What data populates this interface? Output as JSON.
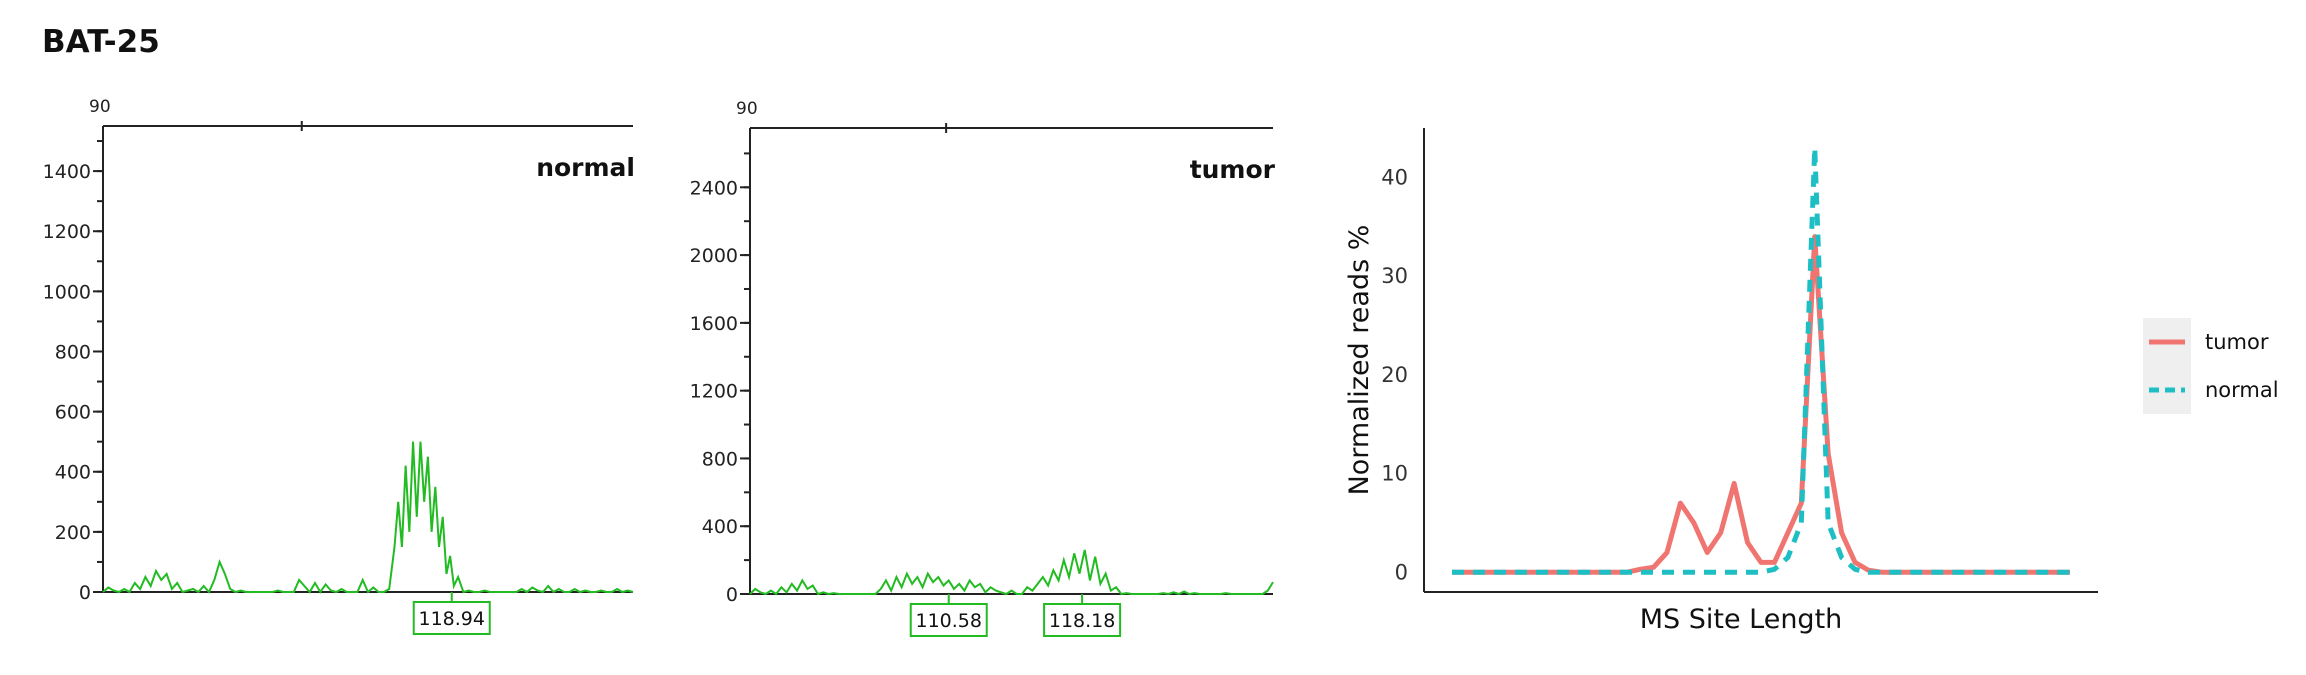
{
  "figure_title": "BAT-25",
  "chart_data": [
    {
      "type": "line",
      "panel_label": "normal",
      "top_axis_start": "90",
      "ylim": [
        0,
        1550
      ],
      "y_ticks": [
        0,
        200,
        400,
        600,
        800,
        1000,
        1200,
        1400
      ],
      "xlim": [
        0,
        100
      ],
      "color": "#22bb22",
      "x": [
        0,
        1,
        2,
        3,
        4,
        5,
        6,
        7,
        8,
        9,
        10,
        11,
        12,
        13,
        14,
        15,
        16,
        17,
        18,
        19,
        20,
        21,
        22,
        23,
        24,
        25,
        26,
        27,
        28,
        29,
        30,
        31,
        32,
        33,
        34,
        35,
        36,
        37,
        38,
        39,
        40,
        41,
        42,
        43,
        44,
        45,
        46,
        47,
        48,
        49,
        50,
        51,
        52,
        53,
        54,
        55,
        55.7,
        56.4,
        57.1,
        57.8,
        58.5,
        59.2,
        59.9,
        60.6,
        61.3,
        62,
        62.7,
        63.4,
        64.1,
        64.8,
        65.5,
        66.2,
        67,
        68,
        69,
        70,
        71,
        72,
        73,
        74,
        75,
        76,
        77,
        78,
        79,
        80,
        81,
        82,
        83,
        84,
        85,
        86,
        87,
        88,
        89,
        90,
        91,
        92,
        93,
        94,
        95,
        96,
        97,
        98,
        99,
        100
      ],
      "y": [
        0,
        15,
        5,
        0,
        10,
        0,
        30,
        10,
        50,
        20,
        70,
        40,
        60,
        10,
        30,
        0,
        5,
        10,
        0,
        20,
        0,
        40,
        100,
        60,
        10,
        0,
        5,
        0,
        0,
        0,
        0,
        0,
        0,
        5,
        0,
        0,
        0,
        40,
        20,
        0,
        30,
        0,
        25,
        5,
        0,
        10,
        0,
        0,
        0,
        40,
        0,
        15,
        0,
        0,
        10,
        150,
        300,
        150,
        420,
        200,
        500,
        250,
        500,
        300,
        450,
        200,
        350,
        150,
        250,
        60,
        120,
        20,
        50,
        0,
        5,
        0,
        0,
        5,
        0,
        0,
        0,
        0,
        0,
        0,
        10,
        0,
        15,
        5,
        0,
        20,
        0,
        10,
        0,
        0,
        10,
        0,
        5,
        0,
        0,
        5,
        0,
        0,
        10,
        0,
        5,
        0
      ],
      "labeled_peaks": [
        {
          "x": 65.8,
          "label": "118.94"
        }
      ]
    },
    {
      "type": "line",
      "panel_label": "tumor",
      "top_axis_start": "90",
      "ylim": [
        0,
        2750
      ],
      "y_ticks": [
        0,
        400,
        800,
        1200,
        1600,
        2000,
        2400
      ],
      "xlim": [
        0,
        100
      ],
      "color": "#22bb22",
      "x": [
        0,
        1,
        2,
        3,
        4,
        5,
        6,
        7,
        8,
        9,
        10,
        11,
        12,
        13,
        14,
        15,
        16,
        17,
        18,
        19,
        20,
        21,
        22,
        23,
        24,
        25,
        26,
        27,
        28,
        29,
        30,
        31,
        32,
        33,
        34,
        35,
        36,
        37,
        38,
        39,
        40,
        41,
        42,
        43,
        44,
        45,
        46,
        47,
        48,
        49,
        50,
        51,
        52,
        53,
        54,
        55,
        56,
        57,
        58,
        59,
        60,
        61,
        62,
        63,
        64,
        65,
        66,
        67,
        68,
        69,
        70,
        71,
        72,
        73,
        74,
        75,
        76,
        77,
        78,
        79,
        80,
        81,
        82,
        83,
        84,
        85,
        86,
        87,
        88,
        89,
        90,
        91,
        92,
        93,
        94,
        95,
        96,
        97,
        98,
        99,
        100
      ],
      "y": [
        0,
        30,
        10,
        0,
        20,
        0,
        40,
        10,
        60,
        20,
        80,
        30,
        50,
        0,
        10,
        0,
        5,
        0,
        0,
        0,
        0,
        0,
        0,
        0,
        0,
        30,
        80,
        20,
        100,
        40,
        120,
        60,
        100,
        40,
        120,
        70,
        100,
        50,
        80,
        30,
        60,
        20,
        80,
        40,
        60,
        10,
        40,
        20,
        10,
        0,
        20,
        0,
        0,
        40,
        20,
        60,
        100,
        50,
        140,
        80,
        200,
        100,
        240,
        120,
        260,
        80,
        220,
        60,
        120,
        20,
        40,
        0,
        5,
        0,
        0,
        0,
        0,
        0,
        0,
        5,
        0,
        10,
        0,
        15,
        0,
        5,
        0,
        0,
        0,
        0,
        0,
        5,
        0,
        0,
        0,
        0,
        0,
        0,
        0,
        20,
        70
      ],
      "labeled_peaks": [
        {
          "x": 38,
          "label": "110.58"
        },
        {
          "x": 63.5,
          "label": "118.18"
        }
      ]
    },
    {
      "type": "line",
      "xlabel": "MS Site Length",
      "ylabel": "Normalized reads %",
      "ylim": [
        -2,
        45
      ],
      "y_ticks": [
        0,
        10,
        20,
        30,
        40
      ],
      "xlim": [
        0,
        46
      ],
      "grid": false,
      "legend_placement": "right",
      "x": [
        0,
        1,
        2,
        3,
        4,
        5,
        6,
        7,
        8,
        9,
        10,
        11,
        12,
        13,
        14,
        15,
        16,
        17,
        18,
        19,
        20,
        21,
        22,
        23,
        24,
        25,
        26,
        27,
        28,
        29,
        30,
        31,
        32,
        33,
        34,
        35,
        36,
        37,
        38,
        39,
        40,
        41,
        42,
        43,
        44,
        45,
        46
      ],
      "series": [
        {
          "name": "tumor",
          "color": "#f07570",
          "dash": "solid",
          "values": [
            0,
            0,
            0,
            0,
            0,
            0,
            0,
            0,
            0,
            0,
            0,
            0,
            0,
            0,
            0.3,
            0.5,
            2,
            7,
            5,
            2,
            4,
            9,
            3,
            1,
            1,
            4,
            7,
            34,
            12,
            4,
            1,
            0.2,
            0,
            0,
            0,
            0,
            0,
            0,
            0,
            0,
            0,
            0,
            0,
            0,
            0,
            0,
            0
          ]
        },
        {
          "name": "normal",
          "color": "#1ebfc4",
          "dash": "dashed",
          "values": [
            0,
            0,
            0,
            0,
            0,
            0,
            0,
            0,
            0,
            0,
            0,
            0,
            0,
            0,
            0,
            0,
            0,
            0,
            0,
            0,
            0,
            0,
            0,
            0,
            0.3,
            1.5,
            5,
            43,
            5,
            1.5,
            0.3,
            0,
            0,
            0,
            0,
            0,
            0,
            0,
            0,
            0,
            0,
            0,
            0,
            0,
            0,
            0,
            0
          ]
        }
      ]
    }
  ]
}
